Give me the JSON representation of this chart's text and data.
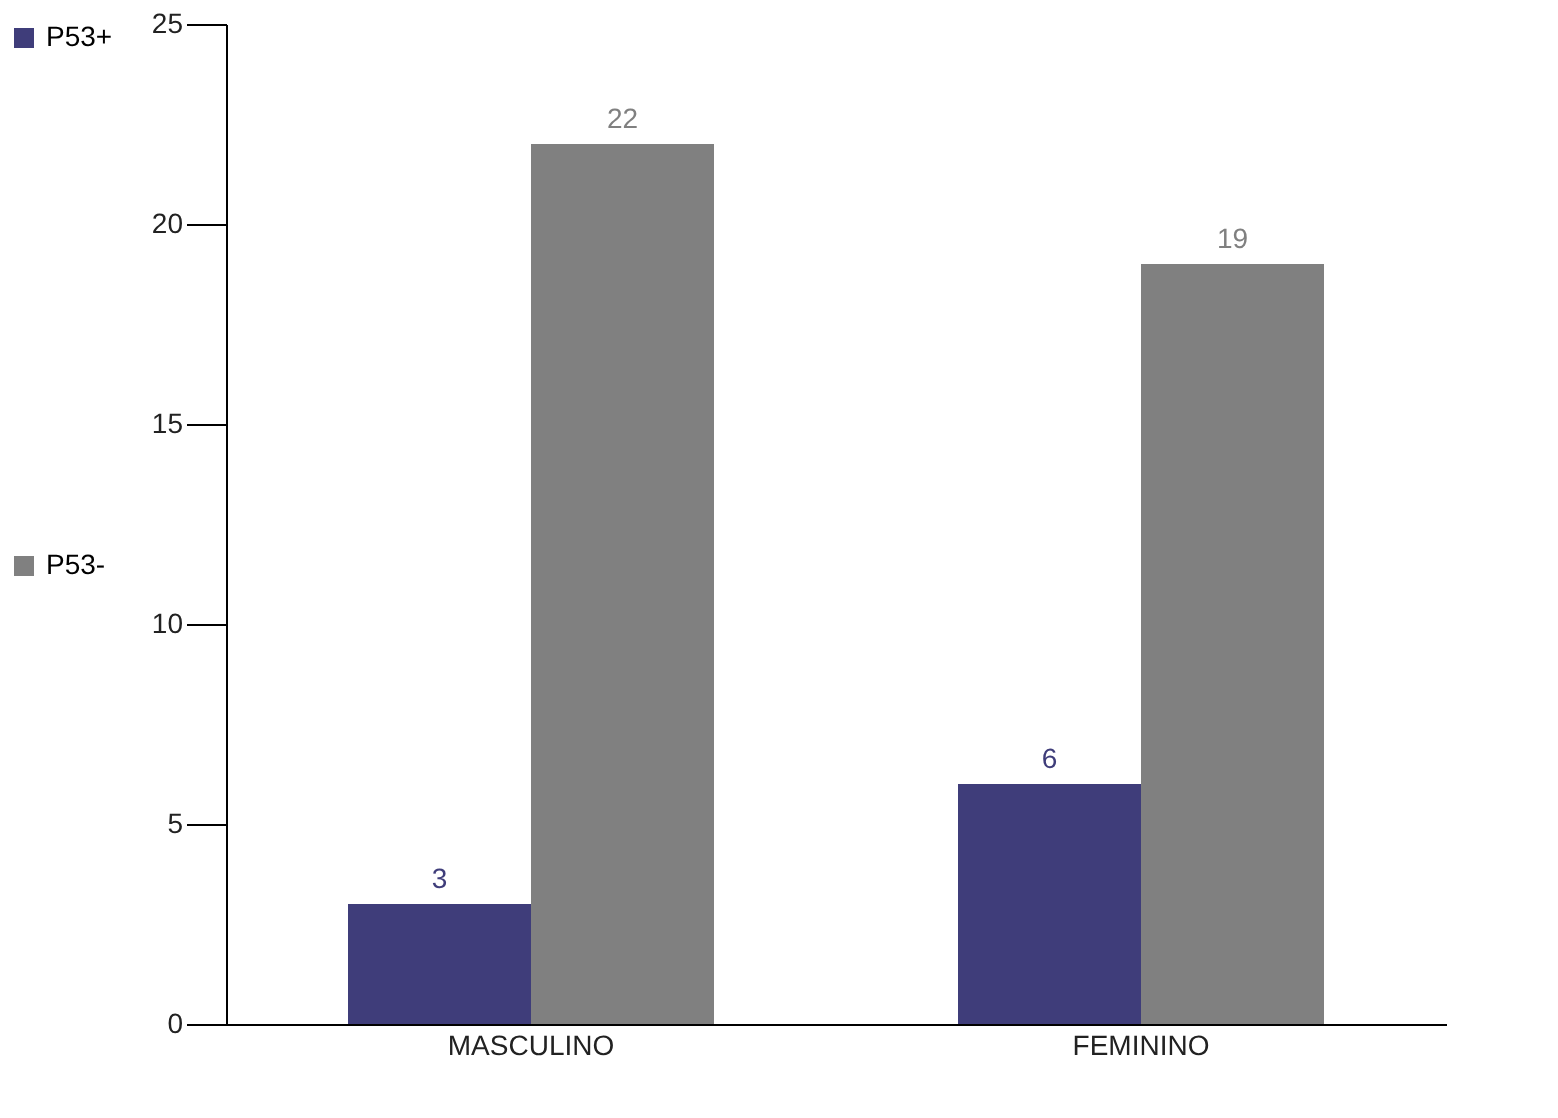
{
  "chart_data": {
    "type": "bar",
    "categories": [
      "MASCULINO",
      "FEMININO"
    ],
    "series": [
      {
        "name": "P53+",
        "color": "#3f3d7a",
        "values": [
          3,
          6
        ]
      },
      {
        "name": "P53-",
        "color": "#808080",
        "values": [
          22,
          19
        ]
      }
    ],
    "ylim": [
      0,
      25
    ],
    "yticks": [
      0,
      5,
      10,
      15,
      20,
      25
    ],
    "grid": false,
    "legend": "left",
    "data_labels": true
  }
}
